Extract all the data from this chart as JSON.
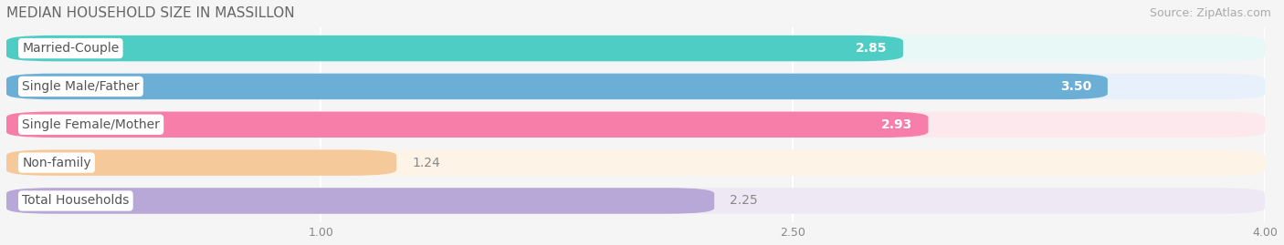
{
  "title": "MEDIAN HOUSEHOLD SIZE IN MASSILLON",
  "source": "Source: ZipAtlas.com",
  "categories": [
    "Married-Couple",
    "Single Male/Father",
    "Single Female/Mother",
    "Non-family",
    "Total Households"
  ],
  "values": [
    2.85,
    3.5,
    2.93,
    1.24,
    2.25
  ],
  "bar_colors": [
    "#4ECDC4",
    "#6BAED6",
    "#F77EA9",
    "#F5C99A",
    "#B8A8D8"
  ],
  "bar_bg_colors": [
    "#E8F8F7",
    "#E8F1FB",
    "#FDE8EE",
    "#FDF3E7",
    "#EEE8F5"
  ],
  "value_in_bar": [
    true,
    true,
    true,
    false,
    false
  ],
  "value_colors_in": [
    "white",
    "white",
    "white",
    "#888888",
    "#888888"
  ],
  "x_min": 0.0,
  "x_max": 4.0,
  "x_ticks": [
    1.0,
    2.5,
    4.0
  ],
  "x_tick_labels": [
    "1.00",
    "2.50",
    "4.00"
  ],
  "label_fontsize": 10,
  "value_fontsize": 10,
  "title_fontsize": 11,
  "source_fontsize": 9,
  "background_color": "#f5f5f5",
  "label_text_color": "#555555",
  "bar_height": 0.68,
  "bar_gap": 0.12
}
